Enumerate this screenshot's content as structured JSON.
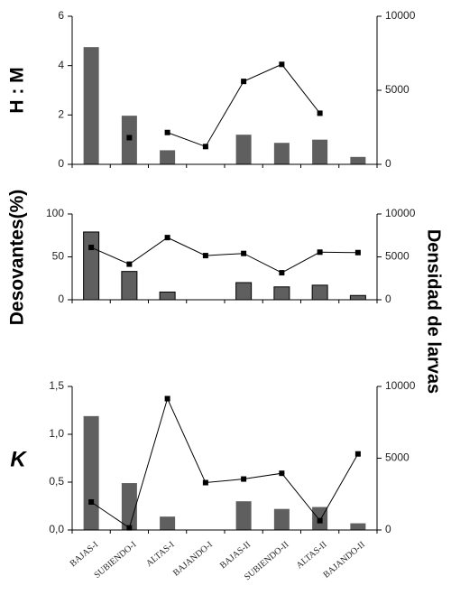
{
  "chart_data": [
    {
      "type": "bar+line",
      "ylabel": "H : M",
      "ylabel_style": "plain",
      "left_axis": {
        "ylim": [
          0,
          6
        ],
        "ticks": [
          0,
          2,
          4,
          6
        ],
        "tick_labels": [
          "0",
          "2",
          "4",
          "6"
        ]
      },
      "right_axis": {
        "ylim": [
          0,
          10000
        ],
        "ticks": [
          0,
          5000,
          10000
        ],
        "tick_labels": [
          "0",
          "5000",
          "10000"
        ]
      },
      "bar_style": "flat",
      "categories": [
        "BAJAS-I",
        "SUBIENDO-I",
        "ALTAS-I",
        "BAJANDO-I",
        "BAJAS-II",
        "SUBIENDO-II",
        "ALTAS-II",
        "BAJANDO-II"
      ],
      "series": [
        {
          "kind": "bar",
          "axis": "left",
          "values": [
            4.75,
            1.97,
            0.57,
            null,
            1.2,
            0.87,
            1.0,
            0.3
          ]
        },
        {
          "kind": "line",
          "axis": "right",
          "values": [
            null,
            1800,
            2150,
            1200,
            5600,
            6750,
            3450,
            null
          ],
          "segments": [
            [
              2,
              6
            ]
          ]
        }
      ]
    },
    {
      "type": "bar+line",
      "ylabel": "Desovantes(%)",
      "ylabel_style": "plain",
      "left_axis": {
        "ylim": [
          0,
          100
        ],
        "ticks": [
          0,
          50,
          100
        ],
        "tick_labels": [
          "0",
          "50",
          "100"
        ]
      },
      "right_axis": {
        "ylim": [
          0,
          10000
        ],
        "ticks": [
          0,
          5000,
          10000
        ],
        "tick_labels": [
          "0",
          "5000",
          "10000"
        ]
      },
      "bar_style": "outlined",
      "categories": [
        "BAJAS-I",
        "SUBIENDO-I",
        "ALTAS-I",
        "BAJANDO-I",
        "BAJAS-II",
        "SUBIENDO-II",
        "ALTAS-II",
        "BAJANDO-II"
      ],
      "series": [
        {
          "kind": "bar",
          "axis": "left",
          "values": [
            79,
            33,
            9,
            null,
            20,
            15,
            17,
            5
          ]
        },
        {
          "kind": "line",
          "axis": "right",
          "values": [
            6100,
            4150,
            7250,
            5150,
            5400,
            3150,
            5550,
            5500
          ],
          "segments": [
            [
              0,
              7
            ]
          ]
        }
      ]
    },
    {
      "type": "bar+line",
      "ylabel": "K",
      "ylabel_style": "italic",
      "left_axis": {
        "ylim": [
          0,
          1.5
        ],
        "ticks": [
          0,
          0.5,
          1.0,
          1.5
        ],
        "tick_labels": [
          "0,0",
          "0,5",
          "1,0",
          "1,5"
        ]
      },
      "right_axis": {
        "ylim": [
          0,
          10000
        ],
        "ticks": [
          0,
          5000,
          10000
        ],
        "tick_labels": [
          "0",
          "5000",
          "10000"
        ]
      },
      "bar_style": "flat",
      "categories": [
        "BAJAS-I",
        "SUBIENDO-I",
        "ALTAS-I",
        "BAJANDO-I",
        "BAJAS-II",
        "SUBIENDO-II",
        "ALTAS-II",
        "BAJANDO-II"
      ],
      "series": [
        {
          "kind": "bar",
          "axis": "left",
          "values": [
            1.19,
            0.49,
            0.14,
            null,
            0.3,
            0.22,
            0.24,
            0.07
          ]
        },
        {
          "kind": "line",
          "axis": "right",
          "values": [
            1950,
            150,
            9150,
            3300,
            3550,
            3950,
            650,
            5300
          ],
          "segments": [
            [
              0,
              7
            ]
          ]
        }
      ],
      "show_x_labels": true
    }
  ],
  "right_label": "Densidad de larvas"
}
